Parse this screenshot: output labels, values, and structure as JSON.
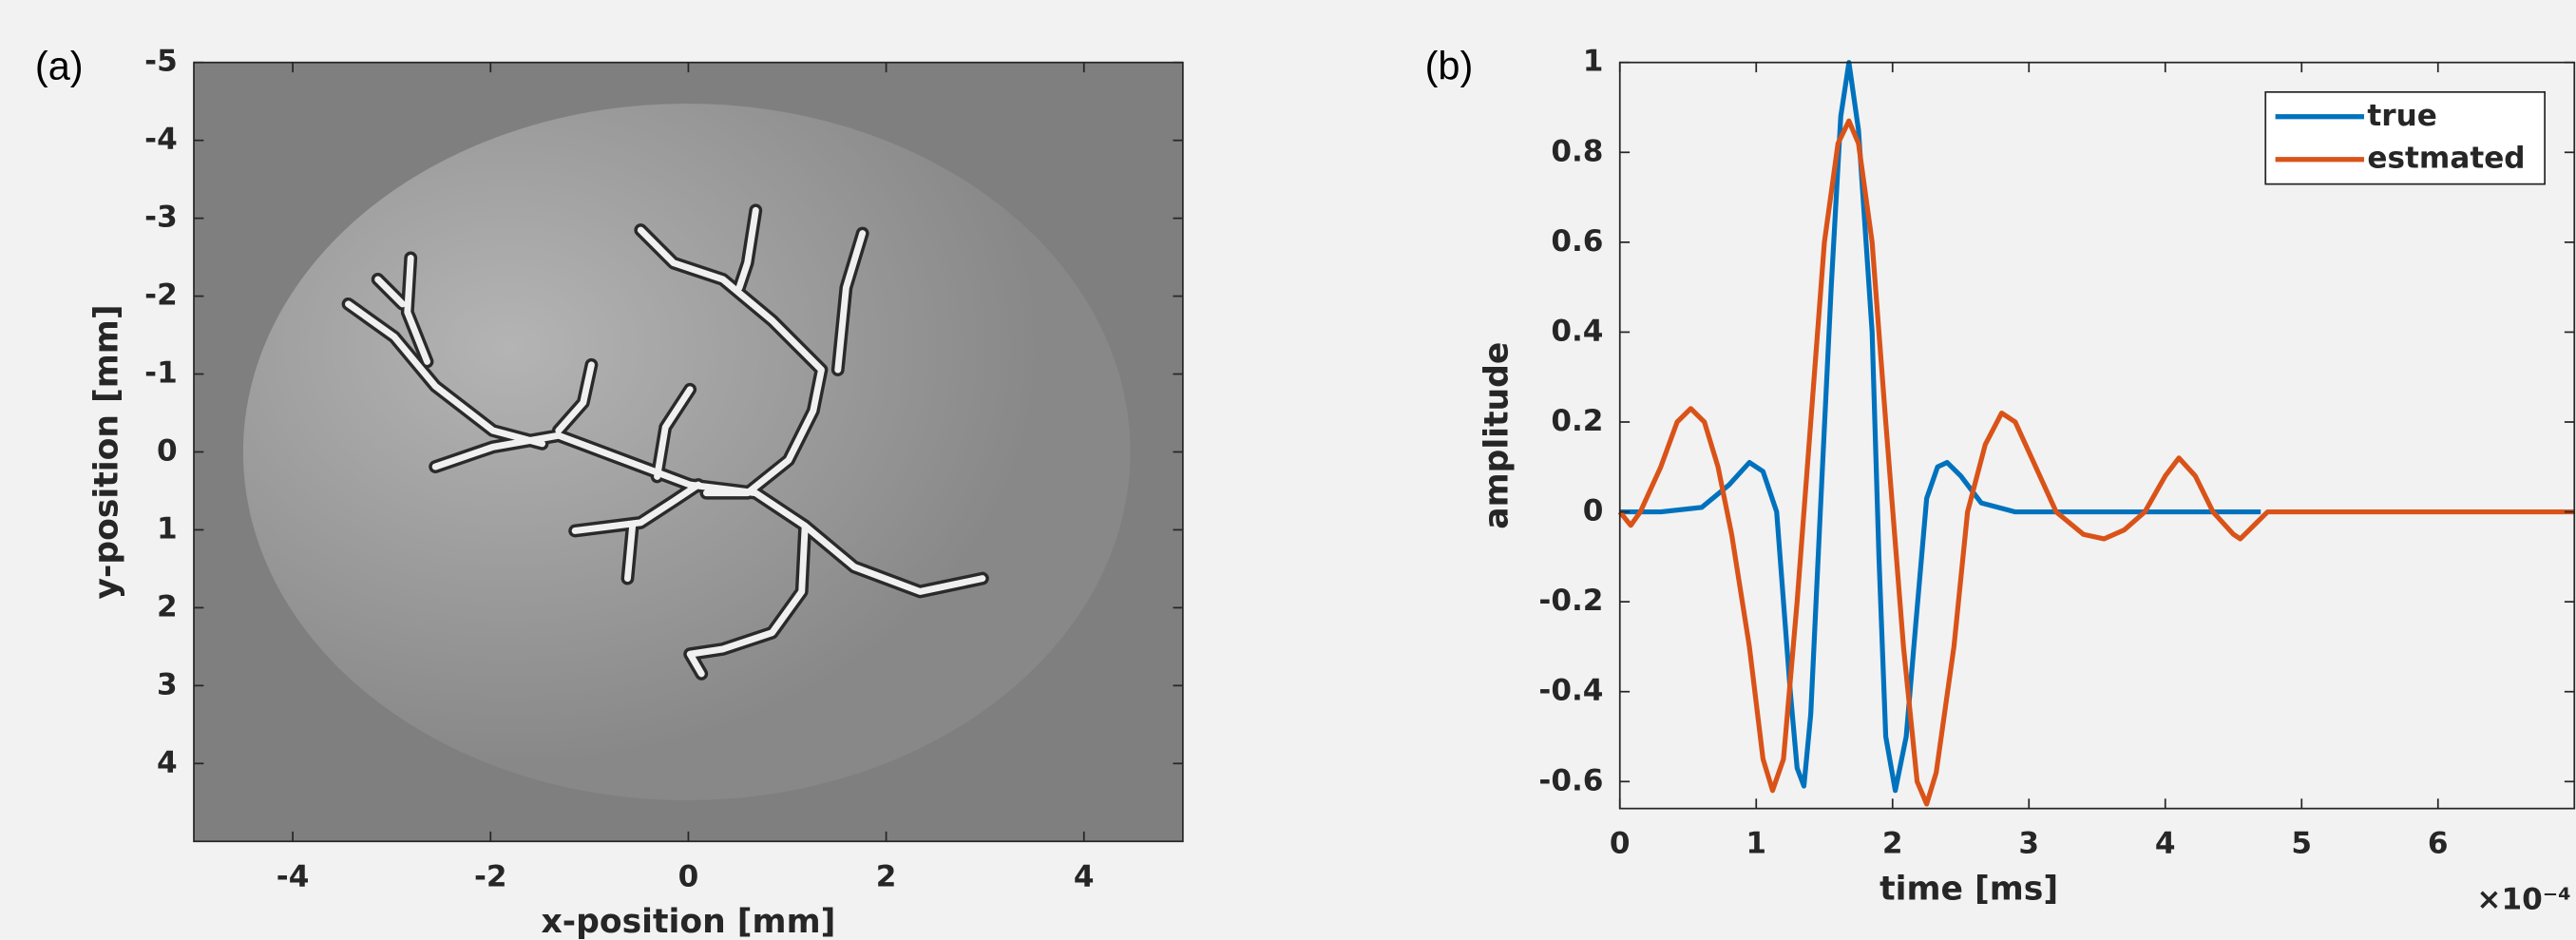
{
  "chart_data": [
    {
      "type": "image",
      "label": "(a)",
      "xlabel": "x-position [mm]",
      "ylabel": "y-position [mm]",
      "xlim": [
        -5,
        5
      ],
      "xticks": [
        -4,
        -2,
        0,
        2,
        4
      ],
      "ylim": [
        -5,
        5
      ],
      "yticks": [
        -5,
        -4,
        -3,
        -2,
        -1,
        0,
        1,
        2,
        3,
        4
      ],
      "y_reversed": true
    },
    {
      "type": "line",
      "label": "(b)",
      "xlabel": "time [ms]",
      "ylabel": "amplitude",
      "x_offset_text": "×10⁻⁴",
      "xlim": [
        0,
        7
      ],
      "xticks": [
        0,
        1,
        2,
        3,
        4,
        5,
        6
      ],
      "ylim": [
        -0.66,
        1
      ],
      "yticks": [
        -0.6,
        -0.4,
        -0.2,
        0,
        0.2,
        0.4,
        0.6,
        0.8,
        1
      ],
      "legend": "upper right",
      "series": [
        {
          "name": "true",
          "color": "#0072bd",
          "x": [
            0,
            0.3,
            0.6,
            0.8,
            0.95,
            1.05,
            1.15,
            1.25,
            1.3,
            1.35,
            1.4,
            1.47,
            1.55,
            1.62,
            1.68,
            1.75,
            1.85,
            1.9,
            1.95,
            2.02,
            2.1,
            2.17,
            2.25,
            2.33,
            2.4,
            2.5,
            2.65,
            2.9,
            3.5,
            4.0,
            4.7
          ],
          "values": [
            0,
            0,
            0.01,
            0.06,
            0.11,
            0.09,
            0,
            -0.4,
            -0.57,
            -0.61,
            -0.45,
            0,
            0.5,
            0.88,
            1,
            0.85,
            0.4,
            -0.1,
            -0.5,
            -0.62,
            -0.5,
            -0.25,
            0.03,
            0.1,
            0.11,
            0.08,
            0.02,
            0,
            0,
            0,
            0
          ]
        },
        {
          "name": "estmated",
          "color": "#d95319",
          "x": [
            0,
            0.08,
            0.15,
            0.3,
            0.42,
            0.52,
            0.62,
            0.72,
            0.82,
            0.95,
            1.05,
            1.12,
            1.2,
            1.3,
            1.4,
            1.5,
            1.6,
            1.68,
            1.75,
            1.85,
            1.95,
            2.08,
            2.18,
            2.25,
            2.32,
            2.45,
            2.55,
            2.68,
            2.8,
            2.9,
            3.05,
            3.2,
            3.4,
            3.55,
            3.7,
            3.85,
            4.0,
            4.1,
            4.22,
            4.35,
            4.5,
            4.55,
            4.65,
            4.75,
            7
          ],
          "values": [
            0,
            -0.03,
            0,
            0.1,
            0.2,
            0.23,
            0.2,
            0.1,
            -0.05,
            -0.3,
            -0.55,
            -0.62,
            -0.55,
            -0.2,
            0.2,
            0.6,
            0.82,
            0.87,
            0.82,
            0.6,
            0.2,
            -0.3,
            -0.6,
            -0.65,
            -0.58,
            -0.3,
            0,
            0.15,
            0.22,
            0.2,
            0.1,
            0,
            -0.05,
            -0.06,
            -0.04,
            0,
            0.08,
            0.12,
            0.08,
            0,
            -0.05,
            -0.06,
            -0.03,
            0,
            0
          ]
        }
      ]
    }
  ]
}
